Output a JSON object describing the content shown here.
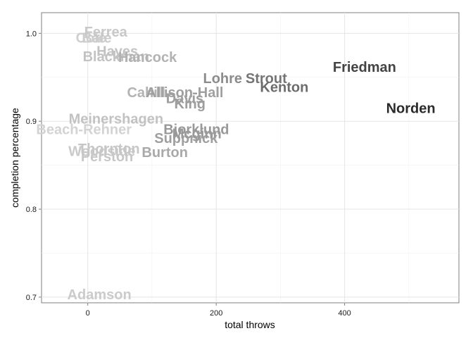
{
  "chart_data": {
    "type": "scatter",
    "title": "",
    "xlabel": "total throws",
    "ylabel": "completion percentage",
    "xlim": [
      -72,
      578
    ],
    "ylim": [
      0.6935,
      1.0235
    ],
    "x_ticks": [
      0,
      200,
      400
    ],
    "x_tick_labels": [
      "0",
      "200",
      "400"
    ],
    "y_ticks": [
      0.7,
      0.8,
      0.9,
      1.0
    ],
    "y_tick_labels": [
      "0.7",
      "0.8",
      "0.9",
      "1.0"
    ],
    "grid": true,
    "legend": "none",
    "color_scale": {
      "low": "#d3d3d3",
      "high": "#2b2b2b"
    },
    "points": [
      {
        "label": "Ferrea",
        "x": 28,
        "y": 1.002
      },
      {
        "label": "Cole",
        "x": 5,
        "y": 0.995
      },
      {
        "label": "Bale",
        "x": 14,
        "y": 0.995
      },
      {
        "label": "Hayes",
        "x": 46,
        "y": 0.98
      },
      {
        "label": "Blackman",
        "x": 44,
        "y": 0.974
      },
      {
        "label": "Hancock",
        "x": 93,
        "y": 0.973
      },
      {
        "label": "Lohre",
        "x": 210,
        "y": 0.949
      },
      {
        "label": "Strout",
        "x": 278,
        "y": 0.949
      },
      {
        "label": "Friedman",
        "x": 431,
        "y": 0.962
      },
      {
        "label": "Kenton",
        "x": 306,
        "y": 0.939
      },
      {
        "label": "Norden",
        "x": 503,
        "y": 0.915
      },
      {
        "label": "Cahill",
        "x": 91,
        "y": 0.933
      },
      {
        "label": "Allison-Hall",
        "x": 151,
        "y": 0.933
      },
      {
        "label": "Davis",
        "x": 151,
        "y": 0.926
      },
      {
        "label": "King",
        "x": 159,
        "y": 0.92
      },
      {
        "label": "Meinershagen",
        "x": 44,
        "y": 0.903
      },
      {
        "label": "Beach-Rehner",
        "x": -6,
        "y": 0.891
      },
      {
        "label": "Bjorklund",
        "x": 169,
        "y": 0.891
      },
      {
        "label": "Mcginn",
        "x": 170,
        "y": 0.886
      },
      {
        "label": "Suppnick",
        "x": 153,
        "y": 0.881
      },
      {
        "label": "Thornton",
        "x": 33,
        "y": 0.869
      },
      {
        "label": "Woodside",
        "x": 22,
        "y": 0.866
      },
      {
        "label": "Burton",
        "x": 120,
        "y": 0.865
      },
      {
        "label": "Perston",
        "x": 30,
        "y": 0.86
      },
      {
        "label": "Adamson",
        "x": 18,
        "y": 0.703
      }
    ]
  }
}
